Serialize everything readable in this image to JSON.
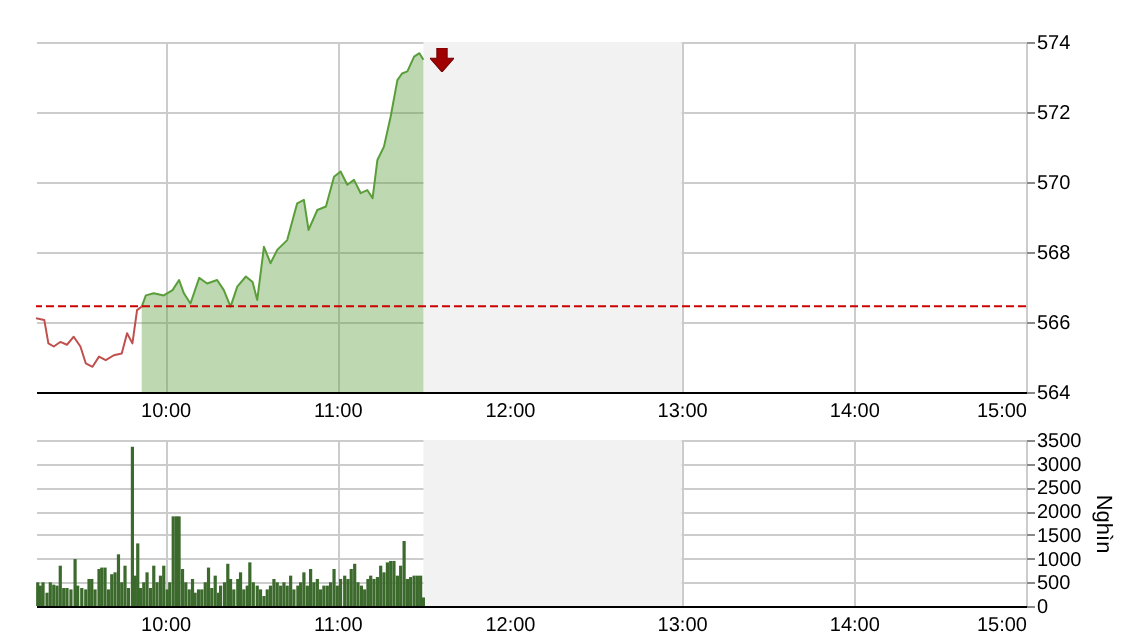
{
  "chart_data": [
    {
      "type": "line",
      "xlim": [
        9.25,
        15
      ],
      "xticks": [
        {
          "value": 10,
          "label": "10:00"
        },
        {
          "value": 11,
          "label": "11:00"
        },
        {
          "value": 12,
          "label": "12:00"
        },
        {
          "value": 13,
          "label": "13:00"
        },
        {
          "value": 14,
          "label": "14:00"
        },
        {
          "value": 15,
          "label": "15:00"
        }
      ],
      "ylim": [
        564,
        574
      ],
      "yticks": [
        564,
        566,
        568,
        570,
        572,
        574
      ],
      "grid": true,
      "series": [
        {
          "type": "line",
          "color": "#c0504d",
          "x": [
            9.25,
            9.298,
            9.322,
            9.353,
            9.391,
            9.43,
            9.469,
            9.508,
            9.539,
            9.578,
            9.616,
            9.655,
            9.702,
            9.748,
            9.779,
            9.81,
            9.837,
            9.864
          ],
          "values": [
            566.11,
            566.06,
            565.39,
            565.3,
            565.43,
            565.35,
            565.58,
            565.3,
            564.82,
            564.72,
            565.01,
            564.91,
            565.05,
            565.1,
            565.68,
            565.39,
            566.34,
            566.44
          ]
        },
        {
          "type": "area",
          "color": "#5a9e3a",
          "x": [
            9.864,
            9.888,
            9.934,
            9.992,
            10.043,
            10.081,
            10.109,
            10.147,
            10.198,
            10.244,
            10.302,
            10.341,
            10.38,
            10.419,
            10.469,
            10.508,
            10.535,
            10.574,
            10.612,
            10.651,
            10.709,
            10.767,
            10.806,
            10.833,
            10.884,
            10.934,
            10.981,
            11.019,
            11.058,
            11.097,
            11.136,
            11.174,
            11.205,
            11.233,
            11.271,
            11.31,
            11.349,
            11.376,
            11.407,
            11.446,
            11.477,
            11.5
          ],
          "values": [
            566.44,
            566.76,
            566.82,
            566.76,
            566.91,
            567.2,
            566.82,
            566.53,
            567.26,
            567.1,
            567.2,
            566.91,
            566.44,
            567.01,
            567.3,
            567.14,
            566.63,
            568.15,
            567.68,
            568.06,
            568.34,
            569.39,
            569.49,
            568.63,
            569.2,
            569.3,
            570.15,
            570.3,
            569.92,
            570.06,
            569.68,
            569.77,
            569.54,
            570.63,
            571.01,
            571.87,
            572.91,
            573.1,
            573.16,
            573.58,
            573.68,
            573.49
          ]
        }
      ],
      "ref_lines": [
        {
          "axis": "y",
          "value": 566.45,
          "color": "#cc0000",
          "line_style": "dashed"
        }
      ],
      "bands": [
        {
          "axis": "x",
          "from": 11.5,
          "to": 13,
          "color": "#f2f2f2"
        }
      ]
    },
    {
      "type": "bar",
      "ylabel": "Nghìn",
      "color": "#3b6a2c",
      "xlim": [
        9.25,
        15
      ],
      "xticks": [
        {
          "value": 10,
          "label": "10:00"
        },
        {
          "value": 11,
          "label": "11:00"
        },
        {
          "value": 12,
          "label": "12:00"
        },
        {
          "value": 13,
          "label": "13:00"
        },
        {
          "value": 14,
          "label": "14:00"
        },
        {
          "value": 15,
          "label": "15:00"
        }
      ],
      "ylim": [
        0,
        3500
      ],
      "yticks": [
        0,
        500,
        1000,
        1500,
        2000,
        2500,
        3000,
        3500
      ],
      "grid": true,
      "x": [
        9.26,
        9.275,
        9.291,
        9.314,
        9.333,
        9.353,
        9.372,
        9.391,
        9.411,
        9.43,
        9.453,
        9.477,
        9.492,
        9.516,
        9.539,
        9.558,
        9.574,
        9.593,
        9.616,
        9.632,
        9.651,
        9.671,
        9.69,
        9.709,
        9.729,
        9.748,
        9.767,
        9.787,
        9.81,
        9.826,
        9.841,
        9.857,
        9.876,
        9.895,
        9.915,
        9.934,
        9.953,
        9.973,
        9.992,
        10.012,
        10.027,
        10.047,
        10.066,
        10.081,
        10.101,
        10.12,
        10.14,
        10.159,
        10.174,
        10.194,
        10.213,
        10.233,
        10.252,
        10.271,
        10.291,
        10.31,
        10.322,
        10.345,
        10.364,
        10.38,
        10.399,
        10.422,
        10.438,
        10.457,
        10.477,
        10.492,
        10.512,
        10.535,
        10.554,
        10.574,
        10.593,
        10.612,
        10.632,
        10.651,
        10.671,
        10.69,
        10.709,
        10.729,
        10.748,
        10.771,
        10.787,
        10.806,
        10.826,
        10.845,
        10.864,
        10.884,
        10.903,
        10.922,
        10.942,
        10.961,
        10.981,
        11.0,
        11.019,
        11.043,
        11.062,
        11.081,
        11.101,
        11.12,
        11.14,
        11.159,
        11.178,
        11.194,
        11.213,
        11.233,
        11.252,
        11.271,
        11.291,
        11.31,
        11.329,
        11.349,
        11.368,
        11.388,
        11.407,
        11.426,
        11.446,
        11.465,
        11.484,
        11.5
      ],
      "values": [
        500,
        430,
        500,
        280,
        500,
        450,
        430,
        850,
        380,
        380,
        350,
        990,
        430,
        380,
        350,
        570,
        570,
        350,
        780,
        810,
        810,
        350,
        670,
        710,
        1090,
        500,
        850,
        380,
        3360,
        640,
        1320,
        380,
        500,
        710,
        380,
        850,
        500,
        640,
        850,
        350,
        500,
        1890,
        1890,
        1890,
        780,
        500,
        350,
        570,
        280,
        350,
        350,
        500,
        810,
        380,
        640,
        280,
        430,
        500,
        890,
        570,
        350,
        570,
        710,
        350,
        430,
        920,
        500,
        430,
        350,
        210,
        350,
        430,
        570,
        500,
        430,
        500,
        430,
        640,
        350,
        430,
        500,
        710,
        430,
        780,
        500,
        570,
        350,
        430,
        430,
        500,
        780,
        430,
        570,
        640,
        570,
        780,
        890,
        500,
        430,
        350,
        570,
        640,
        570,
        610,
        850,
        710,
        920,
        950,
        950,
        640,
        850,
        1370,
        570,
        610,
        640,
        640,
        640,
        180
      ],
      "bands": [
        {
          "axis": "x",
          "from": 11.5,
          "to": 13,
          "color": "#f2f2f2"
        }
      ]
    }
  ]
}
